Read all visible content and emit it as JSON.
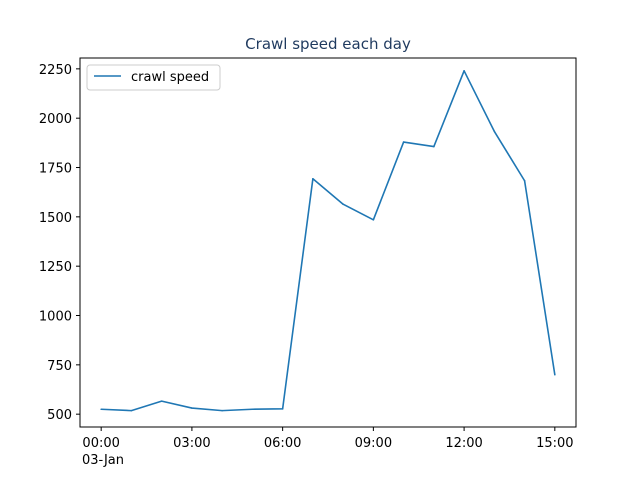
{
  "chart_data": {
    "type": "line",
    "title": "Crawl speed each day",
    "title_color": "#1f3a5f",
    "xlabel": "",
    "ylabel": "",
    "x_date_label": "03-Jan",
    "x_tick_labels": [
      "00:00",
      "03:00",
      "06:00",
      "09:00",
      "12:00",
      "15:00"
    ],
    "x_tick_hours": [
      0,
      3,
      6,
      9,
      12,
      15
    ],
    "xlim_hours": [
      -0.7,
      15.7
    ],
    "y_ticks": [
      500,
      750,
      1000,
      1250,
      1500,
      1750,
      2000,
      2250
    ],
    "ylim": [
      435,
      2305
    ],
    "grid": false,
    "legend_position": "upper-left",
    "series": [
      {
        "name": "crawl speed",
        "color": "#1f77b4",
        "x": [
          "00:00",
          "01:00",
          "02:00",
          "03:00",
          "04:00",
          "05:00",
          "06:00",
          "07:00",
          "08:00",
          "09:00",
          "10:00",
          "11:00",
          "12:00",
          "13:00",
          "14:00",
          "15:00"
        ],
        "values": [
          525,
          518,
          566,
          531,
          518,
          525,
          527,
          1693,
          1564,
          1485,
          1879,
          1856,
          2240,
          1933,
          1683,
          700
        ]
      }
    ]
  }
}
